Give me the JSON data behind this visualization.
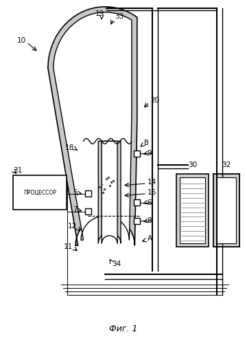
{
  "title": "Фиг. 1",
  "label_10": "10",
  "label_19": "19",
  "label_33": "33",
  "label_20": "20",
  "label_18": "18",
  "label_B": "B",
  "label_9": "9",
  "label_14": "14",
  "label_16": "16",
  "label_6": "6",
  "label_8": "8",
  "label_5": "5",
  "label_7": "7",
  "label_12": "12",
  "label_11": "11",
  "label_34": "34",
  "label_A": "A",
  "label_31": "31",
  "label_30": "30",
  "label_32": "32",
  "label_processor": "ПРОЦЕССОР",
  "bg_color": "#ffffff",
  "line_color": "#000000"
}
